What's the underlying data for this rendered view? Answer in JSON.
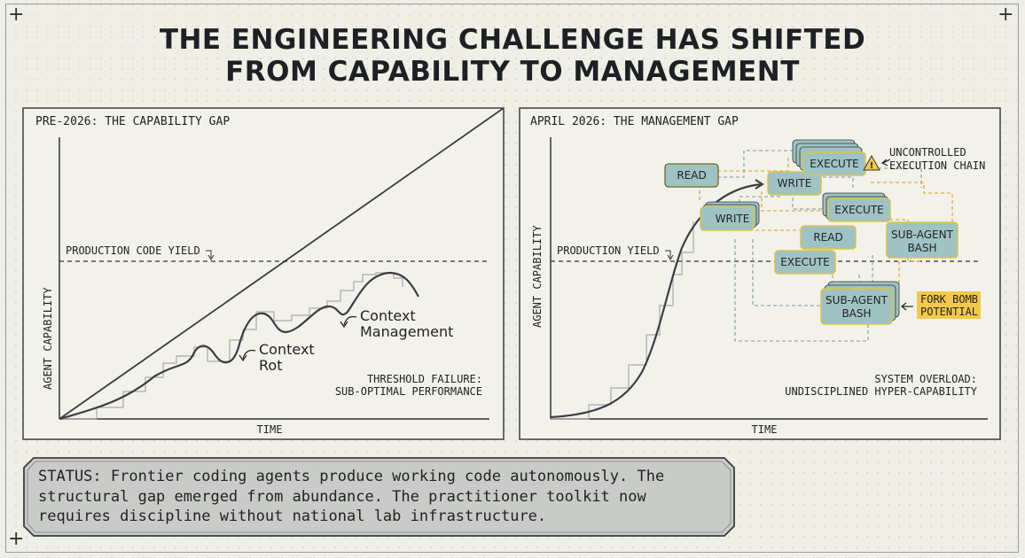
{
  "title": {
    "line1": "THE ENGINEERING CHALLENGE HAS SHIFTED",
    "line2": "FROM CAPABILITY TO MANAGEMENT"
  },
  "corner_marks": [
    "+",
    "+",
    "+"
  ],
  "left_panel": {
    "label": "PRE-2026: THE CAPABILITY GAP",
    "y_axis": "AGENT CAPABILITY",
    "x_axis": "TIME",
    "threshold": "PRODUCTION CODE YIELD",
    "annotations": {
      "context_rot_1": "Context",
      "context_rot_2": "Rot",
      "context_mgmt_1": "Context",
      "context_mgmt_2": "Management"
    },
    "failure_1": "THRESHOLD FAILURE:",
    "failure_2": "SUB-OPTIMAL PERFORMANCE"
  },
  "right_panel": {
    "label": "APRIL 2026: THE MANAGEMENT GAP",
    "y_axis": "AGENT CAPABILITY",
    "x_axis": "TIME",
    "threshold": "PRODUCTION YIELD",
    "nodes": {
      "read_1": "READ",
      "write_1": "WRITE",
      "write_2": "WRITE",
      "execute_1": "EXECUTE",
      "execute_2": "EXECUTE",
      "read_2": "READ",
      "execute_3": "EXECUTE",
      "subagent_1_a": "SUB-AGENT",
      "subagent_1_b": "BASH",
      "subagent_2_a": "SUB-AGENT",
      "subagent_2_b": "BASH"
    },
    "warning_1": "UNCONTROLLED",
    "warning_2": "EXECUTION CHAIN",
    "fork_1": "FORK BOMB",
    "fork_2": "POTENTIAL",
    "overload_1": "SYSTEM OVERLOAD:",
    "overload_2": "UNDISCIPLINED HYPER-CAPABILITY"
  },
  "status": {
    "line1": "STATUS: Frontier coding agents produce working code autonomously. The",
    "line2": "structural gap emerged from abundance. The practitioner toolkit now",
    "line3": "requires discipline without national lab infrastructure."
  },
  "colors": {
    "background": "#f0efe6",
    "node_fill": "#9fc3c4",
    "node_border": "#d8c44a",
    "warning_fill": "#f2c94c",
    "orange_arrow": "#e6a93a",
    "blue_arrow": "#8aa9b3"
  }
}
